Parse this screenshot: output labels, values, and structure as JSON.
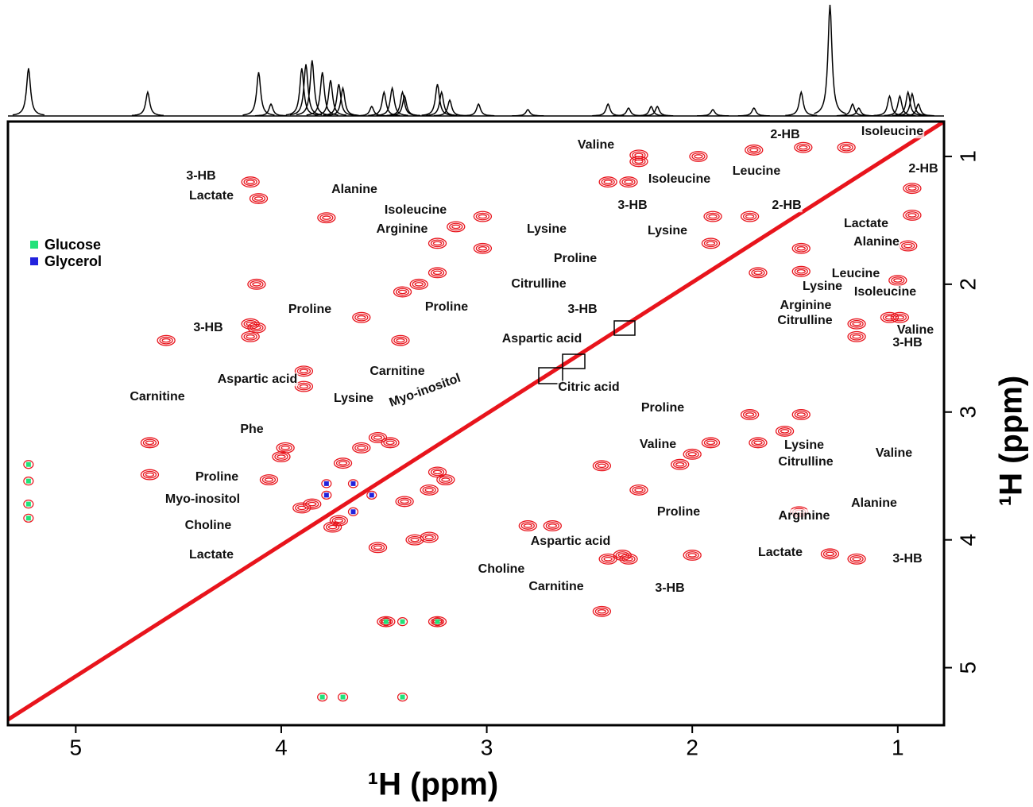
{
  "chart_data": {
    "type": "nmr2d",
    "xlabel": "¹H (ppm)",
    "ylabel": "¹H (ppm)",
    "xlim": [
      5.33,
      0.775
    ],
    "ylim": [
      0.727,
      5.45
    ],
    "xticks": [
      1,
      2,
      3,
      4,
      5
    ],
    "yticks": [
      1,
      2,
      3,
      4,
      5
    ],
    "peaks": {
      "color": "#e8141c",
      "x": [
        4.11,
        4.15,
        2.41,
        2.31,
        4.15,
        4.15,
        3.78,
        3.61,
        2.26,
        2.26,
        1.7,
        1.97,
        1.46,
        1.25,
        3.02,
        3.02,
        1.9,
        1.72,
        3.24,
        3.24,
        1.91,
        4.12,
        4.12,
        3.33,
        3.41,
        4.56,
        3.42,
        3.89,
        3.89,
        3.15,
        3.28,
        4.06,
        3.98,
        3.53,
        4.0,
        3.7,
        3.9,
        3.85,
        3.47,
        4.64,
        4.64
      ],
      "y": [
        1.33,
        1.2,
        1.2,
        1.2,
        2.41,
        2.31,
        1.48,
        2.26,
        1.04,
        0.99,
        0.95,
        1.0,
        0.93,
        0.93,
        1.72,
        1.47,
        1.47,
        1.47,
        1.68,
        1.91,
        1.68,
        2.34,
        2.0,
        2.0,
        2.06,
        2.44,
        2.44,
        2.68,
        2.8,
        1.55,
        3.61,
        3.53,
        3.28,
        3.2,
        3.35,
        3.4,
        3.75,
        3.72,
        3.24,
        3.24,
        3.49
      ]
    },
    "series": [
      {
        "name": "Glucose",
        "color": "#22e27a",
        "x": [
          5.23,
          5.23,
          5.23,
          5.23,
          3.49,
          3.41,
          3.24,
          3.8,
          3.7,
          3.41
        ],
        "y": [
          3.54,
          3.72,
          3.83,
          3.41,
          4.64,
          4.64,
          4.64,
          5.23,
          5.23,
          5.23
        ]
      },
      {
        "name": "Glycerol",
        "color": "#2222dd",
        "x": [
          3.78,
          3.65,
          3.56,
          3.78,
          3.65
        ],
        "y": [
          3.65,
          3.56,
          3.65,
          3.56,
          3.78
        ]
      }
    ],
    "projection": {
      "x": [
        5.23,
        4.65,
        4.11,
        4.05,
        3.9,
        3.88,
        3.85,
        3.8,
        3.76,
        3.72,
        3.7,
        3.56,
        3.5,
        3.46,
        3.41,
        3.4,
        3.24,
        3.22,
        3.18,
        3.04,
        2.8,
        2.41,
        2.31,
        2.2,
        2.17,
        1.9,
        1.7,
        1.47,
        1.33,
        1.22,
        1.19,
        1.04,
        0.99,
        0.95,
        0.93,
        0.9
      ],
      "heights": [
        60,
        30,
        55,
        15,
        60,
        65,
        70,
        55,
        45,
        40,
        35,
        12,
        30,
        35,
        30,
        25,
        40,
        30,
        20,
        15,
        8,
        15,
        10,
        12,
        12,
        8,
        10,
        30,
        140,
        15,
        10,
        25,
        25,
        30,
        28,
        15
      ]
    },
    "annotations": [
      "Valine",
      "2-HB",
      "Isoleucine",
      "Isoleucine",
      "Leucine",
      "2-HB",
      "3-HB",
      "3-HB",
      "Lactate",
      "Alanine",
      "Isoleucine",
      "Arginine",
      "Lysine",
      "Citrulline",
      "2-HB",
      "Lactate",
      "Lysine",
      "Alanine",
      "Proline",
      "Leucine",
      "Lysine",
      "Isoleucine",
      "Arginine",
      "Citrulline",
      "Valine",
      "3-HB",
      "Proline",
      "Proline",
      "3-HB",
      "3-HB",
      "Aspartic acid",
      "Carnitine",
      "Aspartic acid",
      "Carnitine",
      "Lysine",
      "Myo-inositol",
      "Citric acid",
      "Proline",
      "Phe",
      "Lysine",
      "Valine",
      "Citrulline",
      "Valine",
      "Proline",
      "Myo-inositol",
      "Alanine",
      "Arginine",
      "Choline",
      "Proline",
      "Aspartic acid",
      "Lactate",
      "Lactate",
      "3-HB",
      "Choline",
      "Carnitine",
      "3-HB"
    ]
  }
}
